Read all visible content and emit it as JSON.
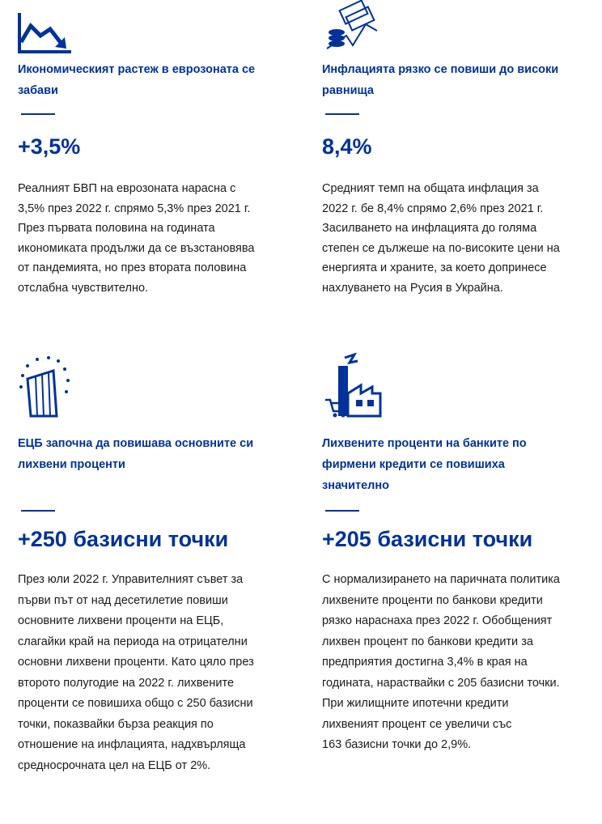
{
  "cards": [
    {
      "title_lines": [
        "Икономическият растеж в еврозоната се",
        "забави"
      ],
      "figure": "+3,5%",
      "body_lines": [
        "Реалният БВП на еврозоната нарасна с",
        "3,5% през 2022 г. спрямо 5,3% през 2021 г.",
        "През първата половина на годината",
        "икономиката продължи да се възстановява",
        "от пандемията, но през втората половина",
        "отслабна чувствително."
      ]
    },
    {
      "title_lines": [
        "Инфлацията рязко се повиши до високи",
        "равнища"
      ],
      "figure": "8,4%",
      "body_lines": [
        "Средният темп на общата инфлация за",
        "2022 г. бе 8,4% спрямо 2,6% през 2021 г.",
        "Засилването на инфлацията до голяма",
        "степен се дължеше на по-високите цени на",
        "енергията и храните, за което допринесе",
        "нахлуването на Русия в Украйна."
      ]
    },
    {
      "title_lines": [
        "ЕЦБ започна да повишава основните си",
        "лихвени проценти"
      ],
      "figure": "+250 базисни точки",
      "body_lines": [
        "През юли 2022 г. Управителният съвет за",
        "първи път от над десетилетие повиши",
        "основните лихвени проценти на ЕЦБ,",
        "слагайки край на периода на отрицателни",
        "основни лихвени проценти. Като цяло през",
        "второто полугодие на 2022 г. лихвените",
        "проценти се повишиха общо с 250 базисни",
        "точки, показвайки бърза реакция по",
        "отношение на инфлацията, надхвърляща",
        "средносрочната цел на ЕЦБ от 2%."
      ]
    },
    {
      "title_lines": [
        "Лихвените проценти на банките по",
        "фирмени кредити се повишиха",
        "значително"
      ],
      "figure": "+205 базисни точки",
      "body_lines": [
        "С нормализирането на паричната политика",
        "лихвените проценти по банкови кредити",
        "рязко нараснаха през 2022 г. Обобщеният",
        "лихвен процент по банкови кредити за",
        "предприятия достигна 3,4% в края на",
        "годината, нараствайки с 205 базисни точки.",
        "При жилищните ипотечни кредити",
        "лихвеният процент се увеличи със",
        "163 базисни точки до 2,9%."
      ]
    }
  ]
}
